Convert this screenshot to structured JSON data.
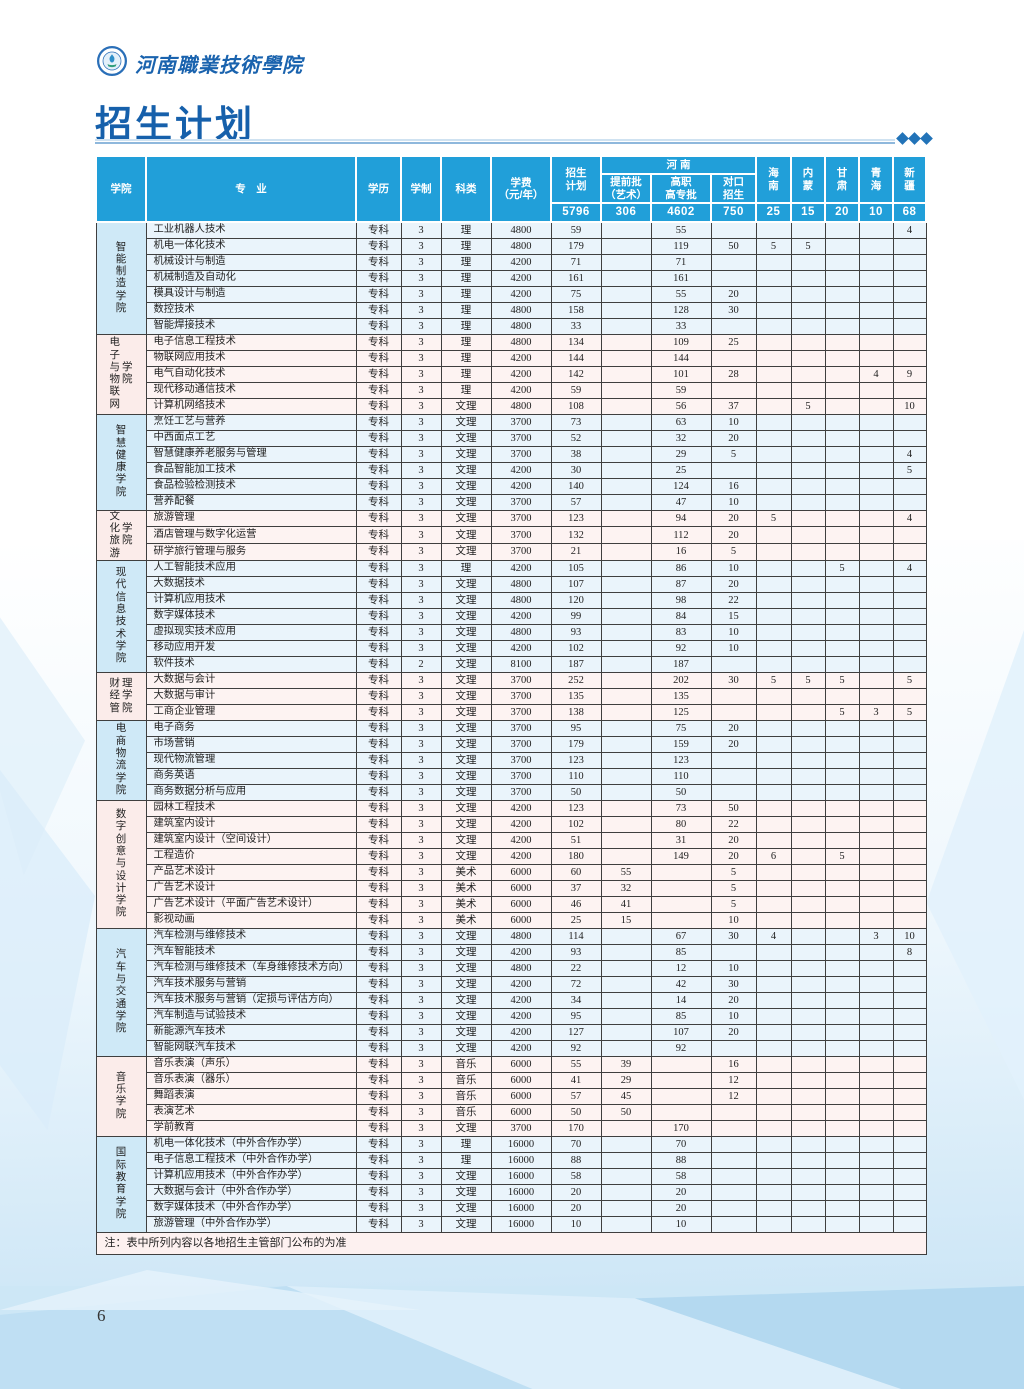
{
  "brand": {
    "logo": "school-emblem",
    "name": "河南職業技術學院"
  },
  "title": "招生计划",
  "page_number": "6",
  "table": {
    "columns": {
      "college": "学院",
      "major": "专　业",
      "degree": "学历",
      "duration": "学制",
      "category": "科类",
      "tuition": "学费\n（元/年）",
      "plan": "招生\n计划",
      "henan": "河 南",
      "henan_sub": [
        "提前批\n（艺术）",
        "高职\n高专批",
        "对口\n招生"
      ],
      "provinces": [
        "海\n南",
        "内\n蒙",
        "甘\n肃",
        "青\n海",
        "新\n疆"
      ]
    },
    "totals": [
      "5796",
      "306",
      "4602",
      "750",
      "25",
      "15",
      "20",
      "10",
      "68"
    ],
    "note": "注：表中所列内容以各地招生主管部门公布的为准",
    "groups": [
      {
        "college": "智能制造学院",
        "college_cols": [
          "智能制造学院"
        ],
        "tone": "blue",
        "rows": [
          [
            "工业机器人技术",
            "专科",
            "3",
            "理",
            "4800",
            "59",
            "",
            "55",
            "",
            "",
            "",
            "",
            "",
            "4"
          ],
          [
            "机电一体化技术",
            "专科",
            "3",
            "理",
            "4800",
            "179",
            "",
            "119",
            "50",
            "5",
            "5",
            "",
            "",
            ""
          ],
          [
            "机械设计与制造",
            "专科",
            "3",
            "理",
            "4200",
            "71",
            "",
            "71",
            "",
            "",
            "",
            "",
            "",
            ""
          ],
          [
            "机械制造及自动化",
            "专科",
            "3",
            "理",
            "4200",
            "161",
            "",
            "161",
            "",
            "",
            "",
            "",
            "",
            ""
          ],
          [
            "模具设计与制造",
            "专科",
            "3",
            "理",
            "4200",
            "75",
            "",
            "55",
            "20",
            "",
            "",
            "",
            "",
            ""
          ],
          [
            "数控技术",
            "专科",
            "3",
            "理",
            "4800",
            "158",
            "",
            "128",
            "30",
            "",
            "",
            "",
            "",
            ""
          ],
          [
            "智能焊接技术",
            "专科",
            "3",
            "理",
            "4800",
            "33",
            "",
            "33",
            "",
            "",
            "",
            "",
            "",
            ""
          ]
        ]
      },
      {
        "college": "电子与物联网学院",
        "college_cols": [
          "电子与物联网",
          "学院"
        ],
        "tone": "pink",
        "rows": [
          [
            "电子信息工程技术",
            "专科",
            "3",
            "理",
            "4800",
            "134",
            "",
            "109",
            "25",
            "",
            "",
            "",
            "",
            ""
          ],
          [
            "物联网应用技术",
            "专科",
            "3",
            "理",
            "4200",
            "144",
            "",
            "144",
            "",
            "",
            "",
            "",
            "",
            ""
          ],
          [
            "电气自动化技术",
            "专科",
            "3",
            "理",
            "4200",
            "142",
            "",
            "101",
            "28",
            "",
            "",
            "",
            "4",
            "9"
          ],
          [
            "现代移动通信技术",
            "专科",
            "3",
            "理",
            "4200",
            "59",
            "",
            "59",
            "",
            "",
            "",
            "",
            "",
            ""
          ],
          [
            "计算机网络技术",
            "专科",
            "3",
            "文理",
            "4800",
            "108",
            "",
            "56",
            "37",
            "",
            "5",
            "",
            "",
            "10"
          ]
        ]
      },
      {
        "college": "智慧健康学院",
        "college_cols": [
          "智慧健康学院"
        ],
        "tone": "blue",
        "rows": [
          [
            "烹饪工艺与营养",
            "专科",
            "3",
            "文理",
            "3700",
            "73",
            "",
            "63",
            "10",
            "",
            "",
            "",
            "",
            ""
          ],
          [
            "中西面点工艺",
            "专科",
            "3",
            "文理",
            "3700",
            "52",
            "",
            "32",
            "20",
            "",
            "",
            "",
            "",
            ""
          ],
          [
            "智慧健康养老服务与管理",
            "专科",
            "3",
            "文理",
            "3700",
            "38",
            "",
            "29",
            "5",
            "",
            "",
            "",
            "",
            "4"
          ],
          [
            "食品智能加工技术",
            "专科",
            "3",
            "文理",
            "4200",
            "30",
            "",
            "25",
            "",
            "",
            "",
            "",
            "",
            "5"
          ],
          [
            "食品检验检测技术",
            "专科",
            "3",
            "文理",
            "4200",
            "140",
            "",
            "124",
            "16",
            "",
            "",
            "",
            "",
            ""
          ],
          [
            "营养配餐",
            "专科",
            "3",
            "文理",
            "3700",
            "57",
            "",
            "47",
            "10",
            "",
            "",
            "",
            "",
            ""
          ]
        ]
      },
      {
        "college": "文化旅游学院",
        "college_cols": [
          "文化旅游",
          "学院"
        ],
        "tone": "pink",
        "rows": [
          [
            "旅游管理",
            "专科",
            "3",
            "文理",
            "3700",
            "123",
            "",
            "94",
            "20",
            "5",
            "",
            "",
            "",
            "4"
          ],
          [
            "酒店管理与数字化运营",
            "专科",
            "3",
            "文理",
            "3700",
            "132",
            "",
            "112",
            "20",
            "",
            "",
            "",
            "",
            ""
          ],
          [
            "研学旅行管理与服务",
            "专科",
            "3",
            "文理",
            "3700",
            "21",
            "",
            "16",
            "5",
            "",
            "",
            "",
            "",
            ""
          ]
        ]
      },
      {
        "college": "现代信息技术学院",
        "college_cols": [
          "现代信息技术学院"
        ],
        "tone": "blue",
        "rows": [
          [
            "人工智能技术应用",
            "专科",
            "3",
            "理",
            "4200",
            "105",
            "",
            "86",
            "10",
            "",
            "",
            "5",
            "",
            "4"
          ],
          [
            "大数据技术",
            "专科",
            "3",
            "文理",
            "4800",
            "107",
            "",
            "87",
            "20",
            "",
            "",
            "",
            "",
            ""
          ],
          [
            "计算机应用技术",
            "专科",
            "3",
            "文理",
            "4800",
            "120",
            "",
            "98",
            "22",
            "",
            "",
            "",
            "",
            ""
          ],
          [
            "数字媒体技术",
            "专科",
            "3",
            "文理",
            "4200",
            "99",
            "",
            "84",
            "15",
            "",
            "",
            "",
            "",
            ""
          ],
          [
            "虚拟现实技术应用",
            "专科",
            "3",
            "文理",
            "4800",
            "93",
            "",
            "83",
            "10",
            "",
            "",
            "",
            "",
            ""
          ],
          [
            "移动应用开发",
            "专科",
            "3",
            "文理",
            "4200",
            "102",
            "",
            "92",
            "10",
            "",
            "",
            "",
            "",
            ""
          ],
          [
            "软件技术",
            "专科",
            "2",
            "文理",
            "8100",
            "187",
            "",
            "187",
            "",
            "",
            "",
            "",
            "",
            ""
          ]
        ]
      },
      {
        "college": "财经管理学院",
        "college_cols": [
          "财经管",
          "理学院"
        ],
        "tone": "pink",
        "rows": [
          [
            "大数据与会计",
            "专科",
            "3",
            "文理",
            "3700",
            "252",
            "",
            "202",
            "30",
            "5",
            "5",
            "5",
            "",
            "5"
          ],
          [
            "大数据与审计",
            "专科",
            "3",
            "文理",
            "3700",
            "135",
            "",
            "135",
            "",
            "",
            "",
            "",
            "",
            ""
          ],
          [
            "工商企业管理",
            "专科",
            "3",
            "文理",
            "3700",
            "138",
            "",
            "125",
            "",
            "",
            "",
            "5",
            "3",
            "5"
          ]
        ]
      },
      {
        "college": "电商物流学院",
        "college_cols": [
          "电商物流学院"
        ],
        "tone": "blue",
        "rows": [
          [
            "电子商务",
            "专科",
            "3",
            "文理",
            "3700",
            "95",
            "",
            "75",
            "20",
            "",
            "",
            "",
            "",
            ""
          ],
          [
            "市场营销",
            "专科",
            "3",
            "文理",
            "3700",
            "179",
            "",
            "159",
            "20",
            "",
            "",
            "",
            "",
            ""
          ],
          [
            "现代物流管理",
            "专科",
            "3",
            "文理",
            "3700",
            "123",
            "",
            "123",
            "",
            "",
            "",
            "",
            "",
            ""
          ],
          [
            "商务英语",
            "专科",
            "3",
            "文理",
            "3700",
            "110",
            "",
            "110",
            "",
            "",
            "",
            "",
            "",
            ""
          ],
          [
            "商务数据分析与应用",
            "专科",
            "3",
            "文理",
            "3700",
            "50",
            "",
            "50",
            "",
            "",
            "",
            "",
            "",
            ""
          ]
        ]
      },
      {
        "college": "数字创意与设计学院",
        "college_cols": [
          "数字创意与设计学院"
        ],
        "tone": "pink",
        "rows": [
          [
            "园林工程技术",
            "专科",
            "3",
            "文理",
            "4200",
            "123",
            "",
            "73",
            "50",
            "",
            "",
            "",
            "",
            ""
          ],
          [
            "建筑室内设计",
            "专科",
            "3",
            "文理",
            "4200",
            "102",
            "",
            "80",
            "22",
            "",
            "",
            "",
            "",
            ""
          ],
          [
            "建筑室内设计（空间设计）",
            "专科",
            "3",
            "文理",
            "4200",
            "51",
            "",
            "31",
            "20",
            "",
            "",
            "",
            "",
            ""
          ],
          [
            "工程造价",
            "专科",
            "3",
            "文理",
            "4200",
            "180",
            "",
            "149",
            "20",
            "6",
            "",
            "5",
            "",
            ""
          ],
          [
            "产品艺术设计",
            "专科",
            "3",
            "美术",
            "6000",
            "60",
            "55",
            "",
            "5",
            "",
            "",
            "",
            "",
            ""
          ],
          [
            "广告艺术设计",
            "专科",
            "3",
            "美术",
            "6000",
            "37",
            "32",
            "",
            "5",
            "",
            "",
            "",
            "",
            ""
          ],
          [
            "广告艺术设计（平面广告艺术设计）",
            "专科",
            "3",
            "美术",
            "6000",
            "46",
            "41",
            "",
            "5",
            "",
            "",
            "",
            "",
            ""
          ],
          [
            "影视动画",
            "专科",
            "3",
            "美术",
            "6000",
            "25",
            "15",
            "",
            "10",
            "",
            "",
            "",
            "",
            ""
          ]
        ]
      },
      {
        "college": "汽车与交通学院",
        "college_cols": [
          "汽车与交通学院"
        ],
        "tone": "blue",
        "rows": [
          [
            "汽车检测与维修技术",
            "专科",
            "3",
            "文理",
            "4800",
            "114",
            "",
            "67",
            "30",
            "4",
            "",
            "",
            "3",
            "10"
          ],
          [
            "汽车智能技术",
            "专科",
            "3",
            "文理",
            "4200",
            "93",
            "",
            "85",
            "",
            "",
            "",
            "",
            "",
            "8"
          ],
          [
            "汽车检测与维修技术（车身维修技术方向）",
            "专科",
            "3",
            "文理",
            "4800",
            "22",
            "",
            "12",
            "10",
            "",
            "",
            "",
            "",
            ""
          ],
          [
            "汽车技术服务与营销",
            "专科",
            "3",
            "文理",
            "4200",
            "72",
            "",
            "42",
            "30",
            "",
            "",
            "",
            "",
            ""
          ],
          [
            "汽车技术服务与营销（定损与评估方向）",
            "专科",
            "3",
            "文理",
            "4200",
            "34",
            "",
            "14",
            "20",
            "",
            "",
            "",
            "",
            ""
          ],
          [
            "汽车制造与试验技术",
            "专科",
            "3",
            "文理",
            "4200",
            "95",
            "",
            "85",
            "10",
            "",
            "",
            "",
            "",
            ""
          ],
          [
            "新能源汽车技术",
            "专科",
            "3",
            "文理",
            "4200",
            "127",
            "",
            "107",
            "20",
            "",
            "",
            "",
            "",
            ""
          ],
          [
            "智能网联汽车技术",
            "专科",
            "3",
            "文理",
            "4200",
            "92",
            "",
            "92",
            "",
            "",
            "",
            "",
            "",
            ""
          ]
        ]
      },
      {
        "college": "音乐学院",
        "college_cols": [
          "音乐学院"
        ],
        "tone": "pink",
        "rows": [
          [
            "音乐表演（声乐）",
            "专科",
            "3",
            "音乐",
            "6000",
            "55",
            "39",
            "",
            "16",
            "",
            "",
            "",
            "",
            ""
          ],
          [
            "音乐表演（器乐）",
            "专科",
            "3",
            "音乐",
            "6000",
            "41",
            "29",
            "",
            "12",
            "",
            "",
            "",
            "",
            ""
          ],
          [
            "舞蹈表演",
            "专科",
            "3",
            "音乐",
            "6000",
            "57",
            "45",
            "",
            "12",
            "",
            "",
            "",
            "",
            ""
          ],
          [
            "表演艺术",
            "专科",
            "3",
            "音乐",
            "6000",
            "50",
            "50",
            "",
            "",
            "",
            "",
            "",
            "",
            ""
          ],
          [
            "学前教育",
            "专科",
            "3",
            "文理",
            "3700",
            "170",
            "",
            "170",
            "",
            "",
            "",
            "",
            "",
            ""
          ]
        ]
      },
      {
        "college": "国际教育学院",
        "college_cols": [
          "国际教育学院"
        ],
        "tone": "blue",
        "rows": [
          [
            "机电一体化技术（中外合作办学）",
            "专科",
            "3",
            "理",
            "16000",
            "70",
            "",
            "70",
            "",
            "",
            "",
            "",
            "",
            ""
          ],
          [
            "电子信息工程技术（中外合作办学）",
            "专科",
            "3",
            "理",
            "16000",
            "88",
            "",
            "88",
            "",
            "",
            "",
            "",
            "",
            ""
          ],
          [
            "计算机应用技术（中外合作办学）",
            "专科",
            "3",
            "文理",
            "16000",
            "58",
            "",
            "58",
            "",
            "",
            "",
            "",
            "",
            ""
          ],
          [
            "大数据与会计（中外合作办学）",
            "专科",
            "3",
            "文理",
            "16000",
            "20",
            "",
            "20",
            "",
            "",
            "",
            "",
            "",
            ""
          ],
          [
            "数字媒体技术（中外合作办学）",
            "专科",
            "3",
            "文理",
            "16000",
            "20",
            "",
            "20",
            "",
            "",
            "",
            "",
            "",
            ""
          ],
          [
            "旅游管理（中外合作办学）",
            "专科",
            "3",
            "文理",
            "16000",
            "10",
            "",
            "10",
            "",
            "",
            "",
            "",
            "",
            ""
          ]
        ]
      }
    ]
  }
}
